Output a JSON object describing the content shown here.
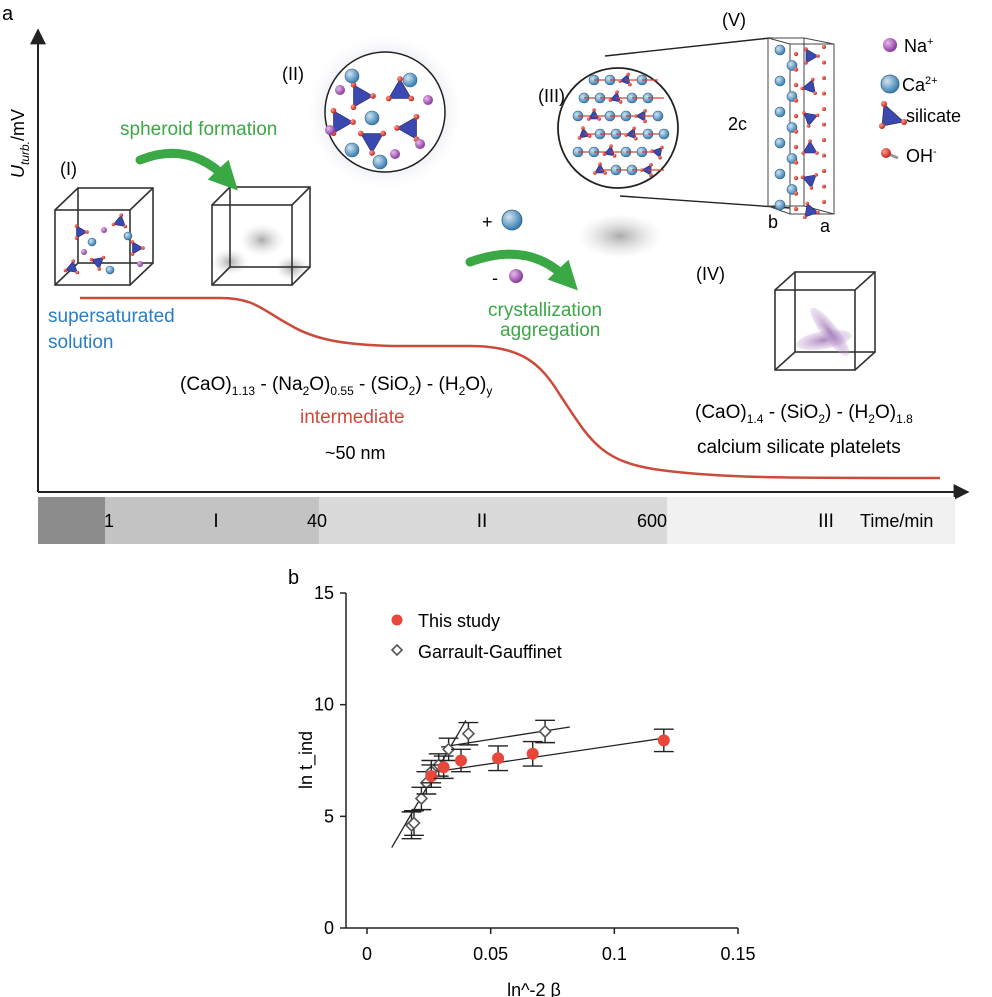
{
  "panel_a": {
    "label": "a",
    "ylabel_main": "U",
    "ylabel_sub": "turb.",
    "ylabel_unit": "/mV",
    "xlabel": "Time/min",
    "timeline": {
      "ticks": [
        "1",
        "40",
        "600"
      ],
      "stages": [
        "I",
        "II",
        "III"
      ]
    },
    "stage_labels": {
      "s1": "(I)",
      "s2": "(II)",
      "s3": "(III)",
      "s4": "(IV)",
      "s5": "(V)"
    },
    "arrow_text": {
      "spheroid": "spheroid formation",
      "crystallization": "crystallization",
      "aggregation": "aggregation",
      "plus": "+",
      "minus": "-"
    },
    "supersaturated": [
      "supersaturated",
      "solution"
    ],
    "intermediate": {
      "formula": [
        {
          "t": "(CaO)"
        },
        {
          "t": "1.13",
          "sub": true
        },
        {
          "t": " - (Na"
        },
        {
          "t": "2",
          "sub": true
        },
        {
          "t": "O)"
        },
        {
          "t": "0.55",
          "sub": true
        },
        {
          "t": " - (SiO"
        },
        {
          "t": "2",
          "sub": true
        },
        {
          "t": ") - (H"
        },
        {
          "t": "2",
          "sub": true
        },
        {
          "t": "O)"
        },
        {
          "t": "y",
          "sub": true
        }
      ],
      "name": "intermediate",
      "size": "~50 nm"
    },
    "platelets": {
      "formula": [
        {
          "t": "(CaO)"
        },
        {
          "t": "1.4",
          "sub": true
        },
        {
          "t": " - (SiO"
        },
        {
          "t": "2",
          "sub": true
        },
        {
          "t": ") - (H"
        },
        {
          "t": "2",
          "sub": true
        },
        {
          "t": "O)"
        },
        {
          "t": "1.8",
          "sub": true
        }
      ],
      "name": "calcium silicate platelets"
    },
    "cell_labels": {
      "c": "2c",
      "b": "b",
      "a": "a"
    },
    "legend": [
      {
        "symbol": "Na",
        "sup": "+"
      },
      {
        "symbol": "Ca",
        "sup": "2+"
      },
      {
        "symbol": "silicate",
        "sup": ""
      },
      {
        "symbol": "OH",
        "sup": "-"
      }
    ],
    "colors": {
      "curve": "#cd4a3b",
      "arrow_green": "#3aa845",
      "green_text": "#3aa845",
      "blue_text": "#2a7dc4",
      "intermediate_red": "#cd4a3b",
      "na_purple": "#a04fb0",
      "ca_blue": "#4f93c4",
      "silicate_blue": "#3a48b0",
      "oxygen_red": "#d83a2a"
    }
  },
  "panel_b": {
    "label": "b"
  },
  "chart_data": {
    "type": "scatter",
    "xlabel": "ln^-2 β",
    "ylabel": "ln t_ind",
    "xlim": [
      0,
      0.15
    ],
    "ylim": [
      0,
      15
    ],
    "xticks": [
      "0",
      "0.05",
      "0.1",
      "0.15"
    ],
    "yticks": [
      "0",
      "5",
      "10",
      "15"
    ],
    "grid": false,
    "legend_position": "top-left",
    "series": [
      {
        "name": "This study",
        "marker": "circle",
        "color": "#e8473a",
        "points": [
          {
            "x": 0.026,
            "y": 6.8,
            "err": 0.5
          },
          {
            "x": 0.031,
            "y": 7.2,
            "err": 0.5
          },
          {
            "x": 0.038,
            "y": 7.5,
            "err": 0.5
          },
          {
            "x": 0.053,
            "y": 7.6,
            "err": 0.55
          },
          {
            "x": 0.067,
            "y": 7.8,
            "err": 0.55
          },
          {
            "x": 0.12,
            "y": 8.4,
            "err": 0.5
          }
        ],
        "fit": [
          [
            0.028,
            7.0
          ],
          [
            0.12,
            8.5
          ]
        ]
      },
      {
        "name": "Garrault-Gauffinet",
        "marker": "diamond",
        "color": "#555555",
        "points": [
          {
            "x": 0.018,
            "y": 4.6,
            "err": 0.6
          },
          {
            "x": 0.019,
            "y": 4.7,
            "err": 0.55
          },
          {
            "x": 0.022,
            "y": 5.8,
            "err": 0.5
          },
          {
            "x": 0.024,
            "y": 6.5,
            "err": 0.5
          },
          {
            "x": 0.026,
            "y": 7.0,
            "err": 0.5
          },
          {
            "x": 0.029,
            "y": 7.3,
            "err": 0.5
          },
          {
            "x": 0.033,
            "y": 8.0,
            "err": 0.5
          },
          {
            "x": 0.041,
            "y": 8.7,
            "err": 0.5
          },
          {
            "x": 0.072,
            "y": 8.8,
            "err": 0.5
          }
        ],
        "fit_steep": [
          [
            0.01,
            3.6
          ],
          [
            0.04,
            9.3
          ]
        ],
        "fit_shallow": [
          [
            0.03,
            8.1
          ],
          [
            0.082,
            9.0
          ]
        ]
      }
    ]
  }
}
